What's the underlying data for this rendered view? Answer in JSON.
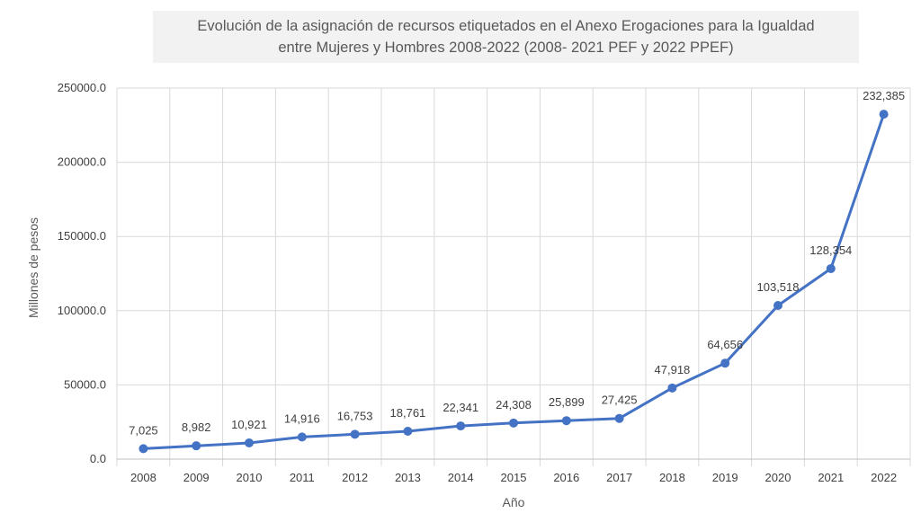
{
  "chart_data": {
    "type": "line",
    "title_line1": "Evolución de la asignación de recursos etiquetados en el Anexo Erogaciones para la Igualdad",
    "title_line2": "entre Mujeres y Hombres  2008-2022 (2008- 2021 PEF y 2022 PPEF)",
    "xlabel": "Año",
    "ylabel": "Millones de pesos",
    "categories": [
      "2008",
      "2009",
      "2010",
      "2011",
      "2012",
      "2013",
      "2014",
      "2015",
      "2016",
      "2017",
      "2018",
      "2019",
      "2020",
      "2021",
      "2022"
    ],
    "values": [
      7025,
      8982,
      10921,
      14916,
      16753,
      18761,
      22341,
      24308,
      25899,
      27425,
      47918,
      64656,
      103518,
      128354,
      232385
    ],
    "data_labels": [
      "7,025",
      "8,982",
      "10,921",
      "14,916",
      "16,753",
      "18,761",
      "22,341",
      "24,308",
      "25,899",
      "27,425",
      "47,918",
      "64,656",
      "103,518",
      "128,354",
      "232,385"
    ],
    "ylim": [
      0,
      250000
    ],
    "yticks": [
      0,
      50000,
      100000,
      150000,
      200000,
      250000
    ],
    "ytick_labels": [
      "0.0",
      "50000.0",
      "100000.0",
      "150000.0",
      "200000.0",
      "250000.0"
    ],
    "grid": true,
    "line_color": "#4472c4",
    "grid_color": "#d9d9d9"
  }
}
